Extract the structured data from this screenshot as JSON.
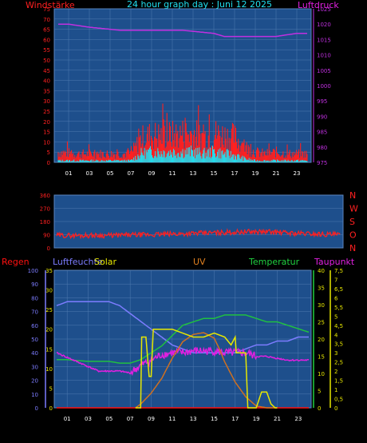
{
  "page": {
    "title": "24 hour graph day : Juni 12 2025",
    "background": "#000000",
    "plot_bg": "#1e4f8c",
    "grid_color": "#4f7bb0"
  },
  "colors": {
    "wind": "#ff2020",
    "gust": "#20e0f0",
    "pressure": "#c030e0",
    "direction": "#ff2020",
    "rain": "#ff1010",
    "humidity": "#7c7cff",
    "solar": "#e8e800",
    "uv": "#d07020",
    "temperature": "#20c040",
    "dewpoint": "#e020e0",
    "yellow_axis": "#e8e800",
    "green_axis": "#20d040"
  },
  "chart_data": [
    {
      "type": "bar",
      "name": "wind-pressure",
      "left_label": "Windstärke",
      "right_label": "Luftdruck",
      "x_ticks": [
        "01",
        "03",
        "05",
        "07",
        "09",
        "11",
        "13",
        "15",
        "17",
        "19",
        "21",
        "23"
      ],
      "left_axis": {
        "ticks": [
          "0",
          "5",
          "10",
          "15",
          "20",
          "25",
          "30",
          "35",
          "40",
          "45",
          "50",
          "55",
          "60",
          "65",
          "70",
          "75"
        ],
        "range": [
          0,
          75
        ]
      },
      "right_axis": {
        "ticks": [
          "975",
          "980",
          "985",
          "990",
          "995",
          "1000",
          "1005",
          "1010",
          "1015",
          "1020",
          "1025"
        ],
        "range": [
          975,
          1025
        ]
      },
      "wind_profile": {
        "hours": [
          0,
          2,
          4,
          6,
          7,
          8,
          9,
          10,
          11,
          12,
          13,
          14,
          15,
          16,
          17,
          18,
          19,
          20,
          21,
          22,
          23,
          24
        ],
        "values": [
          6,
          5,
          5,
          5,
          5,
          14,
          16,
          16,
          16,
          17,
          17,
          15,
          17,
          16,
          15,
          9,
          6,
          5,
          6,
          5,
          5,
          5
        ]
      },
      "gust_profile": {
        "hours": [
          0,
          2,
          4,
          6,
          7,
          8,
          9,
          10,
          11,
          12,
          13,
          14,
          15,
          16,
          17,
          18,
          19,
          20,
          24
        ],
        "values": [
          1,
          1,
          1,
          1,
          1,
          5,
          6,
          6,
          6,
          6,
          6,
          5,
          6,
          5,
          4,
          2,
          1,
          1,
          1
        ]
      },
      "pressure": {
        "hours": [
          0,
          1,
          3,
          6,
          9,
          12,
          15,
          16,
          18,
          19,
          21,
          23,
          24
        ],
        "values": [
          1020,
          1020,
          1019,
          1018,
          1018,
          1018,
          1017,
          1016,
          1016,
          1016,
          1016,
          1017,
          1017
        ]
      }
    },
    {
      "type": "line",
      "name": "wind-direction",
      "right_labels": [
        "N",
        "W",
        "S",
        "O",
        "N"
      ],
      "left_axis": {
        "ticks": [
          "0",
          "90",
          "180",
          "270",
          "360"
        ],
        "range": [
          0,
          360
        ]
      },
      "direction_profile": {
        "hours": [
          0,
          4,
          8,
          10,
          12,
          14,
          16,
          18,
          20,
          22,
          24
        ],
        "values": [
          85,
          85,
          90,
          95,
          100,
          105,
          110,
          110,
          100,
          95,
          90
        ]
      }
    },
    {
      "type": "line",
      "name": "climate",
      "labels": {
        "rain": "Regen",
        "humidity": "Luftfeuchte",
        "solar": "Solar",
        "uv": "UV",
        "temperature": "Temperatur",
        "dewpoint": "Taupunkt"
      },
      "x_ticks": [
        "01",
        "03",
        "05",
        "07",
        "09",
        "11",
        "13",
        "15",
        "17",
        "19",
        "21",
        "23"
      ],
      "rain_axis": {
        "ticks": [
          "0",
          "10",
          "20",
          "30",
          "40",
          "50",
          "60",
          "70",
          "80",
          "90",
          "100"
        ],
        "range": [
          0,
          100
        ]
      },
      "humidity_axis": {
        "ticks": [
          "0",
          "5",
          "10",
          "15",
          "20",
          "25",
          "30",
          "35"
        ],
        "range": [
          0,
          35
        ]
      },
      "temperature_axis": {
        "ticks": [
          "0",
          "5",
          "10",
          "15",
          "20",
          "25",
          "30",
          "35",
          "40"
        ],
        "range": [
          0,
          40
        ]
      },
      "uv_axis": {
        "ticks": [
          "0",
          "0,5",
          "1",
          "1,5",
          "2",
          "2,5",
          "3",
          "3,5",
          "4",
          "4,5",
          "5",
          "5,5",
          "6",
          "6,5",
          "7",
          "7,5"
        ],
        "range": [
          0,
          7.5
        ]
      },
      "rain": {
        "hours": [
          0,
          24
        ],
        "values": [
          0,
          0
        ]
      },
      "humidity": {
        "hours": [
          0,
          1,
          3,
          5,
          6,
          7,
          8,
          9,
          10,
          11,
          12,
          13,
          14,
          15,
          16,
          17,
          18,
          19,
          20,
          21,
          22,
          23,
          24
        ],
        "values": [
          26,
          27,
          27,
          27,
          26,
          24,
          22,
          20,
          18,
          16,
          15,
          14,
          14,
          14,
          14,
          14,
          15,
          16,
          16,
          17,
          17,
          18,
          18
        ]
      },
      "temperature": {
        "hours": [
          0,
          1,
          3,
          5,
          6,
          7,
          8,
          9,
          10,
          11,
          12,
          13,
          14,
          15,
          16,
          17,
          18,
          19,
          20,
          21,
          22,
          23,
          24
        ],
        "values": [
          14,
          14,
          13.5,
          13.5,
          13,
          13,
          14,
          16,
          18,
          21,
          24,
          25,
          26,
          26,
          27,
          27,
          27,
          26,
          25,
          25,
          24,
          23,
          22
        ]
      },
      "dewpoint": {
        "hours": [
          0,
          2,
          4,
          6,
          7,
          8,
          9,
          10,
          11,
          12,
          13,
          14,
          15,
          16,
          17,
          18,
          19,
          20,
          22,
          24
        ],
        "values": [
          3,
          2.5,
          2,
          2,
          1.9,
          2.3,
          2.6,
          2.9,
          3,
          3,
          3.1,
          3.1,
          3.1,
          3,
          3,
          3,
          2.8,
          2.8,
          2.6,
          2.6
        ]
      },
      "solar": {
        "hours": [
          7.5,
          8,
          8.1,
          8.5,
          8.8,
          9,
          9.2,
          10,
          11,
          12,
          13,
          14,
          15,
          16,
          16.6,
          17,
          17.1,
          18,
          18.2,
          19,
          19.5,
          20,
          20.4,
          20.8,
          21
        ],
        "values": [
          0,
          0,
          18,
          18,
          8,
          8,
          20,
          20,
          20,
          19,
          18,
          18,
          19,
          18,
          16,
          18,
          14,
          14,
          0,
          0,
          4,
          4,
          1,
          0,
          0
        ]
      },
      "uv": {
        "hours": [
          7.5,
          8,
          9,
          10,
          11,
          12,
          13,
          14,
          15,
          15.5,
          16,
          17,
          18,
          19,
          20,
          21
        ],
        "values": [
          0,
          0.2,
          0.8,
          1.6,
          2.7,
          3.6,
          4,
          4.1,
          3.8,
          3.2,
          2.5,
          1.4,
          0.6,
          0.1,
          0,
          0
        ]
      }
    }
  ]
}
